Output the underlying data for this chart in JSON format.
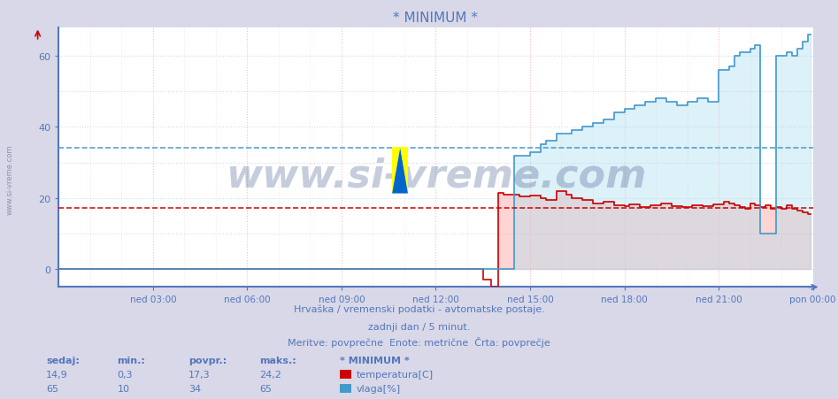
{
  "title": "* MINIMUM *",
  "bg_color": "#d8d8e8",
  "plot_bg_color": "#ffffff",
  "temp_color": "#cc0000",
  "temp_fill_color": "#ffaaaa",
  "vlaga_color": "#4499cc",
  "vlaga_fill_color": "#aaddee",
  "temp_avg": 17.3,
  "vlaga_avg": 34,
  "xlabel_ticks": [
    "ned 03:00",
    "ned 06:00",
    "ned 09:00",
    "ned 12:00",
    "ned 15:00",
    "ned 18:00",
    "ned 21:00",
    "pon 00:00"
  ],
  "ylabel_ticks": [
    0,
    20,
    40,
    60
  ],
  "ylim": [
    -5,
    68
  ],
  "xlim": [
    0,
    288
  ],
  "subtitle1": "Hrvaška / vremenski podatki - avtomatske postaje.",
  "subtitle2": "zadnji dan / 5 minut.",
  "subtitle3": "Meritve: povprečne  Enote: metrične  Črta: povprečje",
  "footer_label": "* MINIMUM *",
  "sedaj_temp": "14,9",
  "min_temp": "0,3",
  "povpr_temp": "17,3",
  "maks_temp": "24,2",
  "sedaj_vlaga": "65",
  "min_vlaga": "10",
  "povpr_vlaga": "34",
  "maks_vlaga": "65",
  "watermark_text": "www.si-vreme.com",
  "watermark_color": "#1a3a7a",
  "watermark_alpha": 0.25,
  "axis_color": "#5577bb",
  "tick_color": "#5577bb",
  "grid_v_color": "#ffbbbb",
  "grid_h_color": "#ccddee"
}
